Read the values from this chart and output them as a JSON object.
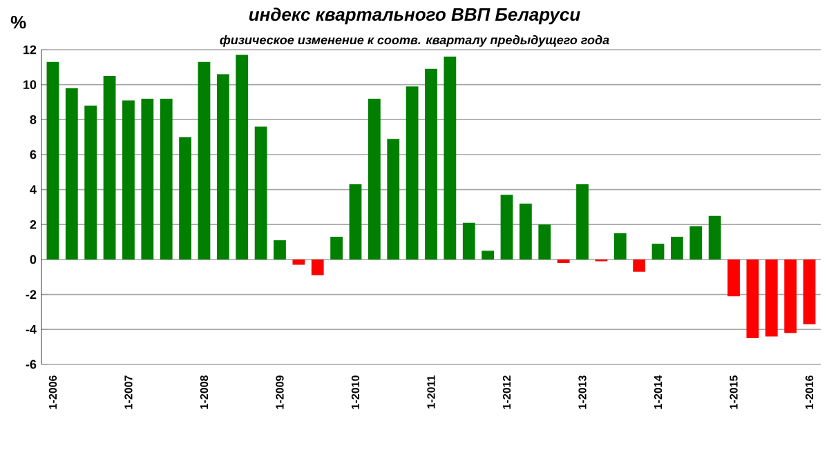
{
  "chart_data": {
    "type": "bar",
    "title": "индекс квартального ВВП Беларуси",
    "subtitle": "физическое изменение к соотв. кварталу предыдущего года",
    "ylabel": "%",
    "categories": [
      "1-2006",
      null,
      null,
      null,
      "1-2007",
      null,
      null,
      null,
      "1-2008",
      null,
      null,
      null,
      "1-2009",
      null,
      null,
      null,
      "1-2010",
      null,
      null,
      null,
      "1-2011",
      null,
      null,
      null,
      "1-2012",
      null,
      null,
      null,
      "1-2013",
      null,
      null,
      null,
      "1-2014",
      null,
      null,
      null,
      "1-2015",
      null,
      null,
      null,
      "1-2016"
    ],
    "values": [
      11.3,
      9.8,
      8.8,
      10.5,
      9.1,
      9.2,
      9.2,
      7.0,
      11.3,
      10.6,
      11.7,
      7.6,
      1.1,
      -0.3,
      -0.9,
      1.3,
      4.3,
      9.2,
      6.9,
      9.9,
      10.9,
      11.6,
      2.1,
      0.5,
      3.7,
      3.2,
      2.0,
      -0.2,
      4.3,
      -0.1,
      1.5,
      -0.7,
      0.9,
      1.3,
      1.9,
      2.5,
      -2.1,
      -4.5,
      -4.4,
      -4.2,
      -3.7
    ],
    "colors": [
      "#007f00",
      "#007f00",
      "#007f00",
      "#007f00",
      "#007f00",
      "#007f00",
      "#007f00",
      "#007f00",
      "#007f00",
      "#007f00",
      "#007f00",
      "#007f00",
      "#007f00",
      "#ff0000",
      "#ff0000",
      "#007f00",
      "#007f00",
      "#007f00",
      "#007f00",
      "#007f00",
      "#007f00",
      "#007f00",
      "#007f00",
      "#007f00",
      "#007f00",
      "#007f00",
      "#007f00",
      "#ff0000",
      "#007f00",
      "#ff0000",
      "#007f00",
      "#ff0000",
      "#007f00",
      "#007f00",
      "#007f00",
      "#007f00",
      "#ff0000",
      "#ff0000",
      "#ff0000",
      "#ff0000",
      "#ff0000"
    ],
    "ylim": [
      -6,
      12
    ],
    "yticks": [
      -6,
      -4,
      -2,
      0,
      2,
      4,
      6,
      8,
      10,
      12
    ],
    "grid": "y"
  }
}
